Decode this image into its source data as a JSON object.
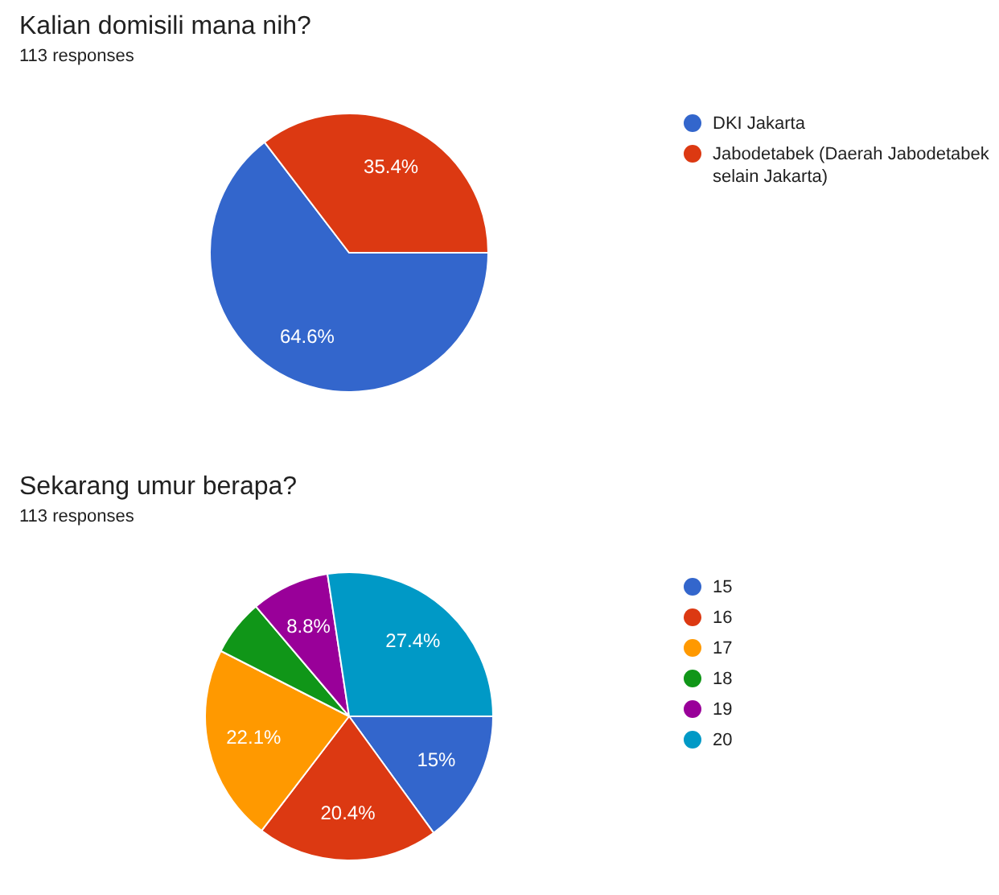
{
  "chart_data": [
    {
      "type": "pie",
      "title": "Kalian domisili mana nih?",
      "subtitle": "113 responses",
      "categories": [
        "DKI Jakarta",
        "Jabodetabek (Daerah Jabodetabek selain Jakarta)"
      ],
      "values": [
        64.6,
        35.4
      ],
      "colors": [
        "#3366cc",
        "#dc3912"
      ],
      "value_labels": [
        "64.6%",
        "35.4%"
      ],
      "legend": "right"
    },
    {
      "type": "pie",
      "title": "Sekarang umur berapa?",
      "subtitle": "113 responses",
      "categories": [
        "15",
        "16",
        "17",
        "18",
        "19",
        "20"
      ],
      "values": [
        15,
        20.4,
        22.1,
        6.3,
        8.8,
        27.4
      ],
      "colors": [
        "#3366cc",
        "#dc3912",
        "#ff9900",
        "#109618",
        "#990099",
        "#0099c6"
      ],
      "value_labels": [
        "15%",
        "20.4%",
        "22.1%",
        null,
        "8.8%",
        "27.4%"
      ],
      "legend": "right"
    }
  ]
}
